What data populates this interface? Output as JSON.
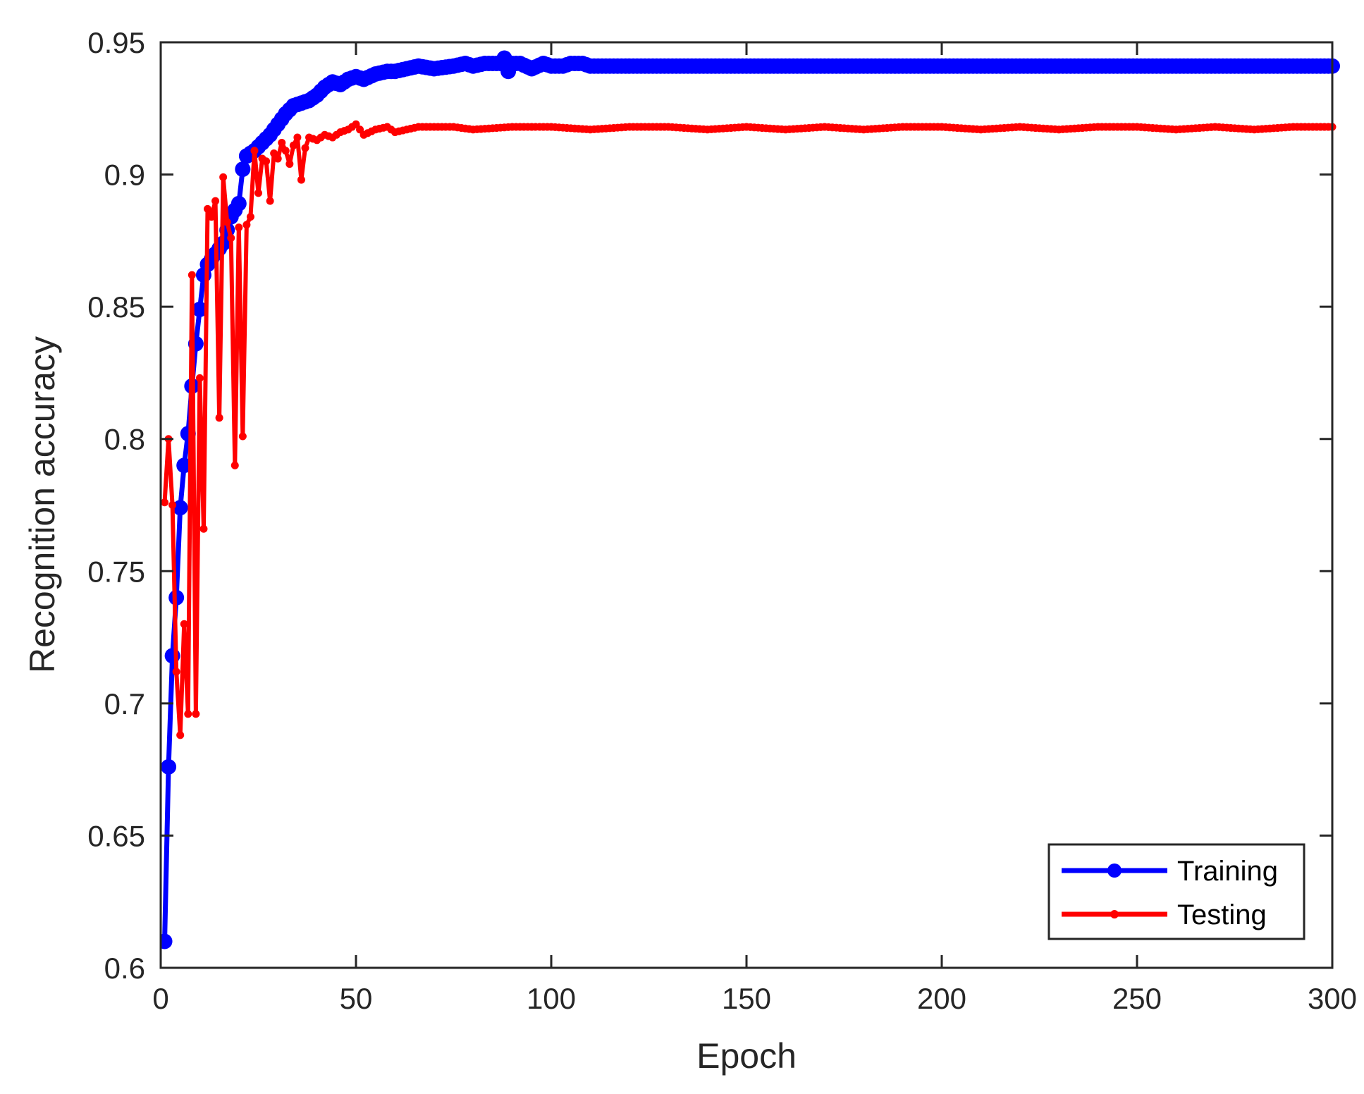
{
  "chart_data": {
    "type": "line",
    "title": "",
    "xlabel": "Epoch",
    "ylabel": "Recognition accuracy",
    "xlim": [
      0,
      300
    ],
    "ylim": [
      0.6,
      0.95
    ],
    "xticks": [
      0,
      50,
      100,
      150,
      200,
      250,
      300
    ],
    "xtick_labels": [
      "0",
      "50",
      "100",
      "150",
      "200",
      "250",
      "300"
    ],
    "yticks": [
      0.6,
      0.65,
      0.7,
      0.75,
      0.8,
      0.85,
      0.9,
      0.95
    ],
    "ytick_labels": [
      "0.6",
      "0.65",
      "0.7",
      "0.75",
      "0.8",
      "0.85",
      "0.9",
      "0.95"
    ],
    "grid": false,
    "legend_position": "bottom-right",
    "series": [
      {
        "name": "Training",
        "color": "#0000ff",
        "marker": "large-dot",
        "points": [
          [
            1,
            0.61
          ],
          [
            2,
            0.676
          ],
          [
            3,
            0.718
          ],
          [
            4,
            0.74
          ],
          [
            5,
            0.774
          ],
          [
            6,
            0.79
          ],
          [
            7,
            0.802
          ],
          [
            8,
            0.82
          ],
          [
            9,
            0.836
          ],
          [
            10,
            0.849
          ],
          [
            11,
            0.862
          ],
          [
            12,
            0.866
          ],
          [
            14,
            0.87
          ],
          [
            16,
            0.874
          ],
          [
            18,
            0.884
          ],
          [
            20,
            0.889
          ],
          [
            21,
            0.902
          ],
          [
            22,
            0.907
          ],
          [
            24,
            0.909
          ],
          [
            26,
            0.912
          ],
          [
            28,
            0.915
          ],
          [
            30,
            0.919
          ],
          [
            32,
            0.923
          ],
          [
            34,
            0.926
          ],
          [
            36,
            0.927
          ],
          [
            38,
            0.928
          ],
          [
            40,
            0.93
          ],
          [
            42,
            0.933
          ],
          [
            44,
            0.935
          ],
          [
            46,
            0.934
          ],
          [
            48,
            0.936
          ],
          [
            50,
            0.937
          ],
          [
            52,
            0.936
          ],
          [
            55,
            0.938
          ],
          [
            58,
            0.939
          ],
          [
            60,
            0.939
          ],
          [
            63,
            0.94
          ],
          [
            66,
            0.941
          ],
          [
            70,
            0.94
          ],
          [
            75,
            0.941
          ],
          [
            78,
            0.942
          ],
          [
            80,
            0.941
          ],
          [
            83,
            0.942
          ],
          [
            85,
            0.942
          ],
          [
            87,
            0.942
          ],
          [
            88,
            0.944
          ],
          [
            89,
            0.939
          ],
          [
            90,
            0.942
          ],
          [
            92,
            0.942
          ],
          [
            95,
            0.94
          ],
          [
            98,
            0.942
          ],
          [
            100,
            0.941
          ],
          [
            103,
            0.941
          ],
          [
            105,
            0.942
          ],
          [
            108,
            0.942
          ],
          [
            110,
            0.941
          ],
          [
            120,
            0.941
          ],
          [
            140,
            0.941
          ],
          [
            160,
            0.941
          ],
          [
            180,
            0.941
          ],
          [
            200,
            0.941
          ],
          [
            220,
            0.941
          ],
          [
            240,
            0.941
          ],
          [
            260,
            0.941
          ],
          [
            280,
            0.941
          ],
          [
            300,
            0.941
          ]
        ]
      },
      {
        "name": "Testing",
        "color": "#ff0000",
        "marker": "small-dot",
        "points": [
          [
            1,
            0.776
          ],
          [
            2,
            0.8
          ],
          [
            3,
            0.775
          ],
          [
            4,
            0.712
          ],
          [
            5,
            0.688
          ],
          [
            6,
            0.73
          ],
          [
            7,
            0.696
          ],
          [
            8,
            0.862
          ],
          [
            9,
            0.696
          ],
          [
            10,
            0.823
          ],
          [
            11,
            0.766
          ],
          [
            12,
            0.887
          ],
          [
            13,
            0.884
          ],
          [
            14,
            0.89
          ],
          [
            15,
            0.808
          ],
          [
            16,
            0.899
          ],
          [
            17,
            0.882
          ],
          [
            18,
            0.876
          ],
          [
            19,
            0.79
          ],
          [
            20,
            0.88
          ],
          [
            21,
            0.801
          ],
          [
            22,
            0.881
          ],
          [
            23,
            0.884
          ],
          [
            24,
            0.909
          ],
          [
            25,
            0.893
          ],
          [
            26,
            0.906
          ],
          [
            27,
            0.905
          ],
          [
            28,
            0.89
          ],
          [
            29,
            0.908
          ],
          [
            30,
            0.906
          ],
          [
            31,
            0.912
          ],
          [
            32,
            0.909
          ],
          [
            33,
            0.904
          ],
          [
            34,
            0.911
          ],
          [
            35,
            0.914
          ],
          [
            36,
            0.898
          ],
          [
            37,
            0.91
          ],
          [
            38,
            0.914
          ],
          [
            40,
            0.913
          ],
          [
            42,
            0.915
          ],
          [
            44,
            0.914
          ],
          [
            46,
            0.916
          ],
          [
            48,
            0.917
          ],
          [
            50,
            0.919
          ],
          [
            52,
            0.915
          ],
          [
            55,
            0.917
          ],
          [
            58,
            0.918
          ],
          [
            60,
            0.916
          ],
          [
            63,
            0.917
          ],
          [
            66,
            0.918
          ],
          [
            70,
            0.918
          ],
          [
            75,
            0.918
          ],
          [
            80,
            0.917
          ],
          [
            90,
            0.918
          ],
          [
            100,
            0.918
          ],
          [
            110,
            0.917
          ],
          [
            120,
            0.918
          ],
          [
            130,
            0.918
          ],
          [
            140,
            0.917
          ],
          [
            150,
            0.918
          ],
          [
            160,
            0.917
          ],
          [
            170,
            0.918
          ],
          [
            180,
            0.917
          ],
          [
            190,
            0.918
          ],
          [
            200,
            0.918
          ],
          [
            210,
            0.917
          ],
          [
            220,
            0.918
          ],
          [
            230,
            0.917
          ],
          [
            240,
            0.918
          ],
          [
            250,
            0.918
          ],
          [
            260,
            0.917
          ],
          [
            270,
            0.918
          ],
          [
            280,
            0.917
          ],
          [
            290,
            0.918
          ],
          [
            300,
            0.918
          ]
        ]
      }
    ]
  }
}
